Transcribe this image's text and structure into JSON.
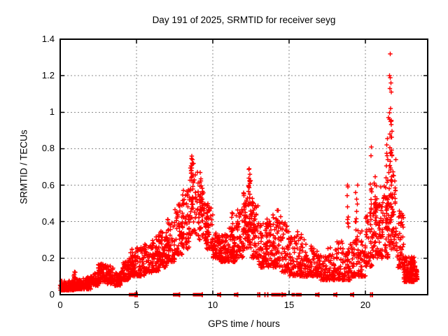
{
  "chart_data": {
    "type": "scatter",
    "title": "Day 191 of 2025, SRMTID for receiver seyg",
    "xlabel": "GPS time / hours",
    "ylabel": "SRMTID / TECUs",
    "xlim": [
      0,
      24.08
    ],
    "ylim": [
      0,
      1.4
    ],
    "xticks": [
      {
        "v": 0,
        "label": "0"
      },
      {
        "v": 5,
        "label": "5"
      },
      {
        "v": 10,
        "label": "10"
      },
      {
        "v": 15,
        "label": "15"
      },
      {
        "v": 20,
        "label": "20"
      }
    ],
    "yticks": [
      {
        "v": 0,
        "label": "0"
      },
      {
        "v": 0.2,
        "label": "0.2"
      },
      {
        "v": 0.4,
        "label": "0.4"
      },
      {
        "v": 0.6,
        "label": "0.6"
      },
      {
        "v": 0.8,
        "label": "0.8"
      },
      {
        "v": 1,
        "label": "1"
      },
      {
        "v": 1.2,
        "label": "1.2"
      },
      {
        "v": 1.4,
        "label": "1.4"
      }
    ],
    "grid": true,
    "grid_color": "#8c8c8c",
    "marker": "plus",
    "marker_color": "#ff0000",
    "axis_color": "#000000",
    "legend": null,
    "seed": 42,
    "envelope_bins": [
      [
        0.0,
        0.5,
        75,
        0.025,
        0.075,
        2.0
      ],
      [
        0.5,
        1.0,
        75,
        0.025,
        0.08,
        2.0
      ],
      [
        1.0,
        1.5,
        75,
        0.03,
        0.085,
        2.0
      ],
      [
        1.5,
        2.0,
        65,
        0.03,
        0.1,
        2.0
      ],
      [
        2.0,
        2.5,
        60,
        0.05,
        0.13,
        1.6
      ],
      [
        2.5,
        3.0,
        65,
        0.07,
        0.17,
        1.6
      ],
      [
        3.0,
        3.5,
        60,
        0.06,
        0.16,
        1.6
      ],
      [
        3.5,
        4.0,
        55,
        0.05,
        0.12,
        1.6
      ],
      [
        4.0,
        4.5,
        60,
        0.08,
        0.18,
        1.6
      ],
      [
        4.5,
        5.0,
        55,
        0.1,
        0.25,
        1.7
      ],
      [
        5.0,
        5.5,
        60,
        0.1,
        0.26,
        1.7
      ],
      [
        5.5,
        6.0,
        60,
        0.12,
        0.28,
        1.7
      ],
      [
        6.0,
        6.5,
        60,
        0.13,
        0.32,
        1.7
      ],
      [
        6.5,
        7.0,
        60,
        0.15,
        0.36,
        1.7
      ],
      [
        7.0,
        7.5,
        60,
        0.18,
        0.42,
        1.7
      ],
      [
        7.5,
        8.0,
        60,
        0.22,
        0.5,
        1.6
      ],
      [
        8.0,
        8.5,
        60,
        0.25,
        0.58,
        1.4
      ],
      [
        8.5,
        9.0,
        40,
        0.32,
        0.72,
        1.2
      ],
      [
        9.0,
        9.5,
        40,
        0.3,
        0.62,
        1.3
      ],
      [
        9.5,
        10.0,
        55,
        0.25,
        0.48,
        1.6
      ],
      [
        10.0,
        10.5,
        70,
        0.2,
        0.34,
        1.7
      ],
      [
        10.5,
        11.0,
        70,
        0.18,
        0.33,
        1.7
      ],
      [
        11.0,
        11.5,
        65,
        0.18,
        0.38,
        1.7
      ],
      [
        11.5,
        12.0,
        60,
        0.2,
        0.48,
        1.7
      ],
      [
        12.0,
        12.5,
        55,
        0.25,
        0.6,
        1.5
      ],
      [
        12.5,
        13.0,
        55,
        0.2,
        0.52,
        1.7
      ],
      [
        13.0,
        13.5,
        55,
        0.15,
        0.4,
        1.7
      ],
      [
        13.5,
        14.0,
        55,
        0.15,
        0.44,
        1.8
      ],
      [
        14.0,
        14.5,
        50,
        0.15,
        0.45,
        1.8
      ],
      [
        14.5,
        15.0,
        55,
        0.12,
        0.4,
        1.8
      ],
      [
        15.0,
        15.5,
        50,
        0.1,
        0.32,
        1.8
      ],
      [
        15.5,
        16.0,
        55,
        0.1,
        0.35,
        1.8
      ],
      [
        16.0,
        16.5,
        55,
        0.1,
        0.28,
        1.8
      ],
      [
        16.5,
        17.0,
        50,
        0.1,
        0.26,
        1.8
      ],
      [
        17.0,
        17.5,
        55,
        0.08,
        0.22,
        1.8
      ],
      [
        17.5,
        18.0,
        50,
        0.08,
        0.26,
        1.8
      ],
      [
        18.0,
        18.5,
        50,
        0.08,
        0.3,
        1.8
      ],
      [
        18.5,
        19.0,
        55,
        0.08,
        0.26,
        1.8
      ],
      [
        19.0,
        19.5,
        45,
        0.1,
        0.32,
        1.8
      ],
      [
        19.5,
        20.0,
        50,
        0.1,
        0.36,
        1.8
      ],
      [
        20.0,
        20.5,
        50,
        0.15,
        0.45,
        1.6
      ],
      [
        20.5,
        21.0,
        55,
        0.2,
        0.5,
        1.5
      ],
      [
        21.0,
        21.5,
        55,
        0.2,
        0.6,
        1.5
      ],
      [
        21.5,
        22.0,
        60,
        0.25,
        0.72,
        1.5
      ],
      [
        22.0,
        22.5,
        55,
        0.15,
        0.48,
        1.7
      ],
      [
        22.5,
        23.25,
        135,
        0.07,
        0.21,
        1.5
      ],
      [
        23.25,
        23.4,
        25,
        0.08,
        0.14,
        1.5
      ]
    ],
    "columns": [
      [
        0.95,
        0.05,
        0.07,
        0.13,
        8
      ],
      [
        4.78,
        0.1,
        0.14,
        0.27,
        12
      ],
      [
        6.5,
        0.06,
        0.2,
        0.33,
        8
      ],
      [
        8.65,
        0.09,
        0.45,
        0.76,
        20
      ],
      [
        9.25,
        0.12,
        0.42,
        0.67,
        22
      ],
      [
        9.7,
        0.1,
        0.3,
        0.5,
        14
      ],
      [
        11.3,
        0.06,
        0.25,
        0.45,
        8
      ],
      [
        12.1,
        0.06,
        0.3,
        0.5,
        10
      ],
      [
        12.4,
        0.08,
        0.35,
        0.69,
        20
      ],
      [
        12.65,
        0.06,
        0.3,
        0.55,
        10
      ],
      [
        13.55,
        0.05,
        0.25,
        0.42,
        8
      ],
      [
        14.25,
        0.05,
        0.25,
        0.47,
        8
      ],
      [
        18.85,
        0.06,
        0.28,
        0.6,
        8
      ],
      [
        19.4,
        0.06,
        0.28,
        0.62,
        10
      ],
      [
        20.35,
        0.06,
        0.4,
        0.78,
        12
      ],
      [
        20.65,
        0.1,
        0.32,
        0.65,
        20
      ],
      [
        21.4,
        0.08,
        0.35,
        0.82,
        18
      ],
      [
        21.7,
        0.12,
        0.3,
        1.0,
        30
      ]
    ],
    "highlight_points": [
      [
        21.62,
        1.32
      ],
      [
        21.58,
        1.2
      ],
      [
        21.63,
        1.19
      ],
      [
        21.67,
        1.16
      ],
      [
        21.6,
        1.13
      ],
      [
        21.7,
        1.11
      ],
      [
        21.65,
        1.02
      ],
      [
        21.52,
        0.97
      ],
      [
        21.58,
        0.96
      ],
      [
        21.64,
        0.95
      ],
      [
        21.7,
        0.955
      ],
      [
        21.6,
        0.88
      ],
      [
        21.45,
        0.855
      ],
      [
        20.38,
        0.81
      ],
      [
        21.4,
        0.82
      ],
      [
        22.0,
        0.74
      ],
      [
        8.62,
        0.76
      ],
      [
        8.68,
        0.74
      ],
      [
        8.74,
        0.72
      ],
      [
        12.38,
        0.69
      ],
      [
        12.43,
        0.66
      ],
      [
        9.18,
        0.67
      ],
      [
        19.5,
        0.6
      ],
      [
        18.82,
        0.6
      ]
    ],
    "gap_markers": {
      "squares": [
        4.62,
        4.72,
        4.82,
        7.5,
        7.72,
        8.8,
        8.9,
        9.0,
        9.1,
        9.2,
        10.4,
        11.5,
        13.95,
        14.05,
        14.2,
        14.35,
        14.7,
        15.28,
        15.55,
        15.7,
        16.8,
        18.0,
        19.1
      ],
      "ticks": [
        4.9,
        4.98,
        5.05,
        7.82,
        9.3,
        10.5,
        11.62,
        12.95,
        13.08,
        13.42,
        13.6,
        14.55,
        16.95,
        18.12,
        19.22,
        20.35,
        20.45
      ]
    }
  }
}
